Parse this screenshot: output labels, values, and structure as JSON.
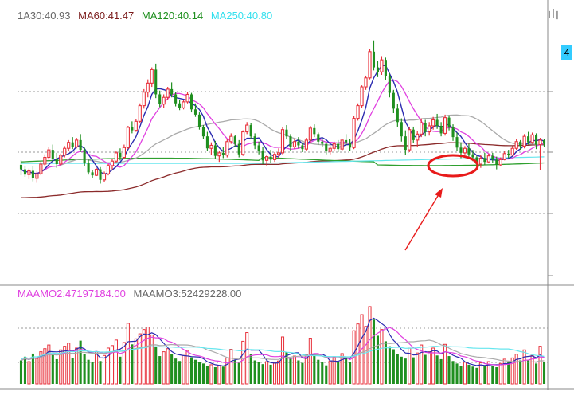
{
  "price_legend": [
    {
      "text": "1A30:40.93",
      "color": "#666666"
    },
    {
      "text": "MA60:41.47",
      "color": "#7a1a1a"
    },
    {
      "text": "MA120:40.14",
      "color": "#1f8f1f"
    },
    {
      "text": "MA250:40.80",
      "color": "#33e0ee"
    }
  ],
  "volume_legend": [
    {
      "text": "MAAMO2:47197184.00",
      "color": "#e040e0"
    },
    {
      "text": "MAAMO3:52429228.00",
      "color": "#666666"
    }
  ],
  "corner_label": "山",
  "right_tab_label": "4",
  "colors": {
    "up": "#e8323c",
    "down": "#1f8f1f",
    "ma_dark_blue": "#2b2bb0",
    "ma_magenta": "#e040e0",
    "ma_gray": "#aaaaaa",
    "ma_brown": "#8b2a2a",
    "ma_green": "#2fa02f",
    "ma_cyan": "#66e6ee",
    "grid": "#9a9a9a",
    "annotation": "#e81a1a"
  },
  "chart_data": [
    {
      "type": "candlestick",
      "title": "",
      "series_names": [
        "MA30",
        "MA60",
        "MA120",
        "MA250"
      ],
      "grid": true,
      "annotations": [
        "red ellipse around recent low candles",
        "red arrow pointing to ellipse"
      ],
      "ohlc": [
        [
          43.2,
          43.8,
          41.8,
          42.6
        ],
        [
          42.6,
          43.1,
          41.6,
          41.9
        ],
        [
          41.9,
          42.7,
          41.3,
          42.4
        ],
        [
          42.4,
          43.0,
          41.0,
          41.4
        ],
        [
          41.4,
          42.3,
          40.8,
          42.0
        ],
        [
          42.0,
          43.6,
          41.8,
          43.3
        ],
        [
          43.3,
          44.6,
          43.0,
          44.2
        ],
        [
          44.2,
          45.6,
          43.9,
          45.2
        ],
        [
          45.2,
          45.9,
          43.6,
          44.0
        ],
        [
          44.0,
          44.8,
          42.8,
          43.3
        ],
        [
          43.3,
          44.7,
          43.1,
          44.5
        ],
        [
          44.5,
          45.7,
          44.2,
          45.4
        ],
        [
          45.4,
          46.5,
          45.0,
          46.2
        ],
        [
          46.2,
          46.9,
          45.3,
          45.6
        ],
        [
          45.6,
          46.8,
          45.4,
          46.5
        ],
        [
          46.5,
          47.3,
          44.9,
          45.2
        ],
        [
          45.2,
          45.5,
          43.0,
          43.4
        ],
        [
          43.4,
          43.9,
          41.9,
          42.2
        ],
        [
          42.2,
          42.5,
          41.5,
          41.8
        ],
        [
          41.8,
          42.8,
          41.7,
          42.6
        ],
        [
          42.6,
          42.9,
          40.7,
          41.2
        ],
        [
          41.2,
          42.3,
          40.9,
          42.0
        ],
        [
          42.0,
          43.3,
          41.8,
          43.1
        ],
        [
          43.1,
          44.0,
          42.6,
          43.7
        ],
        [
          43.7,
          45.1,
          43.5,
          44.8
        ],
        [
          44.8,
          45.4,
          43.8,
          44.2
        ],
        [
          44.2,
          45.9,
          44.0,
          45.5
        ],
        [
          45.5,
          48.4,
          45.3,
          48.2
        ],
        [
          48.2,
          49.0,
          47.4,
          47.8
        ],
        [
          47.8,
          49.3,
          47.6,
          49.0
        ],
        [
          49.0,
          51.4,
          48.8,
          51.1
        ],
        [
          51.1,
          53.3,
          50.7,
          52.9
        ],
        [
          52.9,
          54.6,
          52.2,
          54.1
        ],
        [
          54.1,
          56.2,
          53.6,
          55.9
        ],
        [
          55.9,
          56.7,
          52.1,
          52.6
        ],
        [
          52.6,
          53.1,
          50.9,
          51.3
        ],
        [
          51.3,
          52.6,
          50.8,
          52.2
        ],
        [
          52.2,
          53.6,
          51.9,
          53.3
        ],
        [
          53.3,
          54.2,
          52.2,
          52.6
        ],
        [
          52.6,
          52.9,
          51.0,
          51.4
        ],
        [
          51.4,
          51.9,
          50.5,
          50.8
        ],
        [
          50.8,
          51.9,
          50.6,
          51.6
        ],
        [
          51.6,
          52.9,
          51.4,
          52.6
        ],
        [
          52.6,
          52.8,
          50.2,
          50.6
        ],
        [
          50.6,
          51.4,
          49.6,
          49.9
        ],
        [
          49.9,
          50.2,
          47.9,
          48.2
        ],
        [
          48.2,
          48.5,
          46.6,
          47.0
        ],
        [
          47.0,
          47.6,
          45.1,
          45.4
        ],
        [
          45.4,
          46.2,
          44.5,
          45.8
        ],
        [
          45.8,
          46.4,
          44.0,
          44.4
        ],
        [
          44.4,
          45.1,
          43.6,
          44.8
        ],
        [
          44.8,
          45.6,
          44.1,
          44.5
        ],
        [
          44.5,
          46.6,
          44.2,
          46.3
        ],
        [
          46.3,
          47.4,
          46.0,
          47.0
        ],
        [
          47.0,
          47.2,
          45.6,
          46.0
        ],
        [
          46.0,
          46.5,
          44.2,
          44.6
        ],
        [
          44.6,
          47.8,
          44.4,
          47.6
        ],
        [
          47.6,
          48.9,
          47.3,
          48.5
        ],
        [
          48.5,
          48.8,
          46.6,
          47.0
        ],
        [
          47.0,
          47.4,
          45.3,
          45.8
        ],
        [
          45.8,
          46.3,
          44.6,
          45.1
        ],
        [
          45.1,
          45.6,
          43.3,
          43.8
        ],
        [
          43.8,
          44.5,
          43.1,
          44.3
        ],
        [
          44.3,
          45.2,
          43.5,
          43.9
        ],
        [
          43.9,
          44.9,
          43.6,
          44.6
        ],
        [
          44.6,
          45.4,
          44.1,
          44.8
        ],
        [
          44.8,
          48.2,
          44.6,
          47.9
        ],
        [
          47.9,
          48.5,
          46.6,
          47.0
        ],
        [
          47.0,
          47.3,
          45.1,
          45.6
        ],
        [
          45.6,
          46.6,
          45.3,
          46.3
        ],
        [
          46.3,
          46.9,
          45.4,
          45.8
        ],
        [
          45.8,
          46.2,
          44.9,
          45.3
        ],
        [
          45.3,
          46.8,
          45.0,
          46.5
        ],
        [
          46.5,
          48.4,
          46.1,
          48.1
        ],
        [
          48.1,
          48.6,
          46.9,
          47.3
        ],
        [
          47.3,
          47.5,
          45.9,
          46.3
        ],
        [
          46.3,
          46.6,
          45.6,
          46.0
        ],
        [
          46.0,
          46.2,
          44.6,
          45.0
        ],
        [
          45.0,
          45.7,
          44.6,
          45.4
        ],
        [
          45.4,
          46.3,
          45.0,
          46.0
        ],
        [
          46.0,
          46.5,
          44.9,
          45.3
        ],
        [
          45.3,
          46.7,
          45.1,
          46.5
        ],
        [
          46.5,
          47.3,
          45.8,
          46.2
        ],
        [
          46.2,
          46.6,
          45.1,
          45.5
        ],
        [
          45.5,
          49.7,
          45.3,
          49.4
        ],
        [
          49.4,
          51.4,
          49.1,
          51.1
        ],
        [
          51.1,
          53.8,
          50.8,
          53.6
        ],
        [
          53.6,
          55.1,
          53.2,
          54.8
        ],
        [
          54.8,
          58.6,
          54.6,
          58.3
        ],
        [
          58.3,
          59.8,
          55.8,
          56.2
        ],
        [
          56.2,
          57.1,
          54.9,
          55.6
        ],
        [
          55.6,
          57.7,
          55.2,
          57.2
        ],
        [
          57.2,
          57.5,
          54.5,
          55.0
        ],
        [
          55.0,
          55.4,
          52.2,
          52.8
        ],
        [
          52.8,
          53.2,
          50.1,
          50.7
        ],
        [
          50.7,
          51.3,
          48.3,
          48.9
        ],
        [
          48.9,
          49.4,
          46.3,
          47.0
        ],
        [
          47.0,
          47.8,
          44.5,
          45.2
        ],
        [
          45.2,
          48.3,
          44.9,
          47.9
        ],
        [
          47.9,
          48.3,
          46.1,
          46.5
        ],
        [
          46.5,
          47.7,
          45.6,
          47.3
        ],
        [
          47.3,
          49.4,
          46.9,
          48.8
        ],
        [
          48.8,
          49.2,
          47.0,
          47.6
        ],
        [
          47.6,
          48.9,
          47.1,
          48.4
        ],
        [
          48.4,
          49.6,
          47.9,
          49.2
        ],
        [
          49.2,
          50.0,
          48.0,
          48.4
        ],
        [
          48.4,
          48.9,
          47.0,
          47.4
        ],
        [
          47.4,
          49.9,
          47.1,
          49.5
        ],
        [
          49.5,
          49.8,
          47.8,
          48.2
        ],
        [
          48.2,
          48.6,
          46.4,
          46.9
        ],
        [
          46.9,
          47.5,
          45.0,
          45.5
        ],
        [
          45.5,
          46.2,
          44.1,
          44.8
        ],
        [
          44.8,
          45.7,
          44.6,
          45.4
        ],
        [
          45.4,
          46.0,
          44.3,
          44.6
        ],
        [
          44.6,
          45.2,
          43.7,
          44.2
        ],
        [
          44.2,
          44.4,
          42.8,
          43.3
        ],
        [
          43.3,
          44.5,
          42.8,
          44.1
        ],
        [
          44.1,
          44.8,
          43.2,
          43.6
        ],
        [
          43.6,
          44.7,
          43.4,
          44.4
        ],
        [
          44.4,
          44.8,
          43.5,
          43.9
        ],
        [
          43.9,
          44.3,
          42.6,
          43.2
        ],
        [
          43.2,
          44.2,
          43.0,
          43.9
        ],
        [
          43.9,
          45.1,
          43.8,
          44.7
        ],
        [
          44.7,
          45.2,
          44.1,
          44.5
        ],
        [
          44.5,
          45.7,
          44.4,
          45.4
        ],
        [
          45.4,
          46.7,
          45.2,
          46.3
        ],
        [
          46.3,
          46.5,
          45.2,
          45.7
        ],
        [
          45.7,
          47.3,
          45.4,
          47.0
        ],
        [
          47.0,
          47.6,
          45.9,
          46.2
        ],
        [
          46.2,
          47.5,
          46.0,
          47.2
        ],
        [
          47.2,
          47.4,
          45.3,
          45.9
        ],
        [
          45.9,
          46.8,
          42.5,
          46.5
        ],
        [
          46.5,
          46.7,
          45.6,
          46.0
        ]
      ],
      "volume": [
        38,
        44,
        36,
        49,
        41,
        52,
        57,
        63,
        47,
        40,
        55,
        61,
        66,
        42,
        58,
        70,
        48,
        39,
        35,
        52,
        37,
        46,
        58,
        62,
        71,
        44,
        67,
        98,
        64,
        73,
        81,
        88,
        92,
        79,
        60,
        45,
        52,
        57,
        48,
        41,
        37,
        46,
        54,
        43,
        39,
        35,
        33,
        29,
        31,
        27,
        30,
        28,
        42,
        56,
        39,
        34,
        69,
        83,
        48,
        38,
        35,
        32,
        36,
        31,
        34,
        37,
        76,
        51,
        42,
        45,
        38,
        34,
        47,
        74,
        46,
        39,
        35,
        30,
        37,
        44,
        36,
        49,
        41,
        36,
        86,
        97,
        112,
        93,
        125,
        104,
        78,
        88,
        69,
        61,
        56,
        48,
        44,
        41,
        58,
        43,
        50,
        63,
        47,
        52,
        58,
        46,
        40,
        64,
        45,
        37,
        33,
        29,
        35,
        31,
        28,
        26,
        34,
        30,
        36,
        29,
        27,
        33,
        40,
        35,
        42,
        48,
        38,
        55,
        39,
        46,
        33,
        61,
        36
      ]
    }
  ]
}
